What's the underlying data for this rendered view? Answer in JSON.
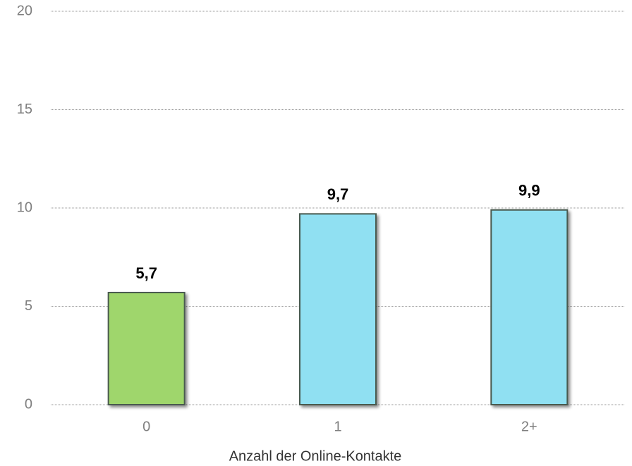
{
  "chart_data": {
    "type": "bar",
    "categories": [
      "0",
      "1",
      "2+"
    ],
    "values": [
      5.7,
      9.7,
      9.9
    ],
    "value_labels": [
      "5,7",
      "9,7",
      "9,9"
    ],
    "colors": [
      "#9fd66c",
      "#90e0f2",
      "#90e0f2"
    ],
    "xlabel": "Anzahl der Online-Kontakte",
    "ylim": [
      0,
      20
    ],
    "yticks": [
      0,
      5,
      10,
      15,
      20
    ],
    "grid": true
  }
}
